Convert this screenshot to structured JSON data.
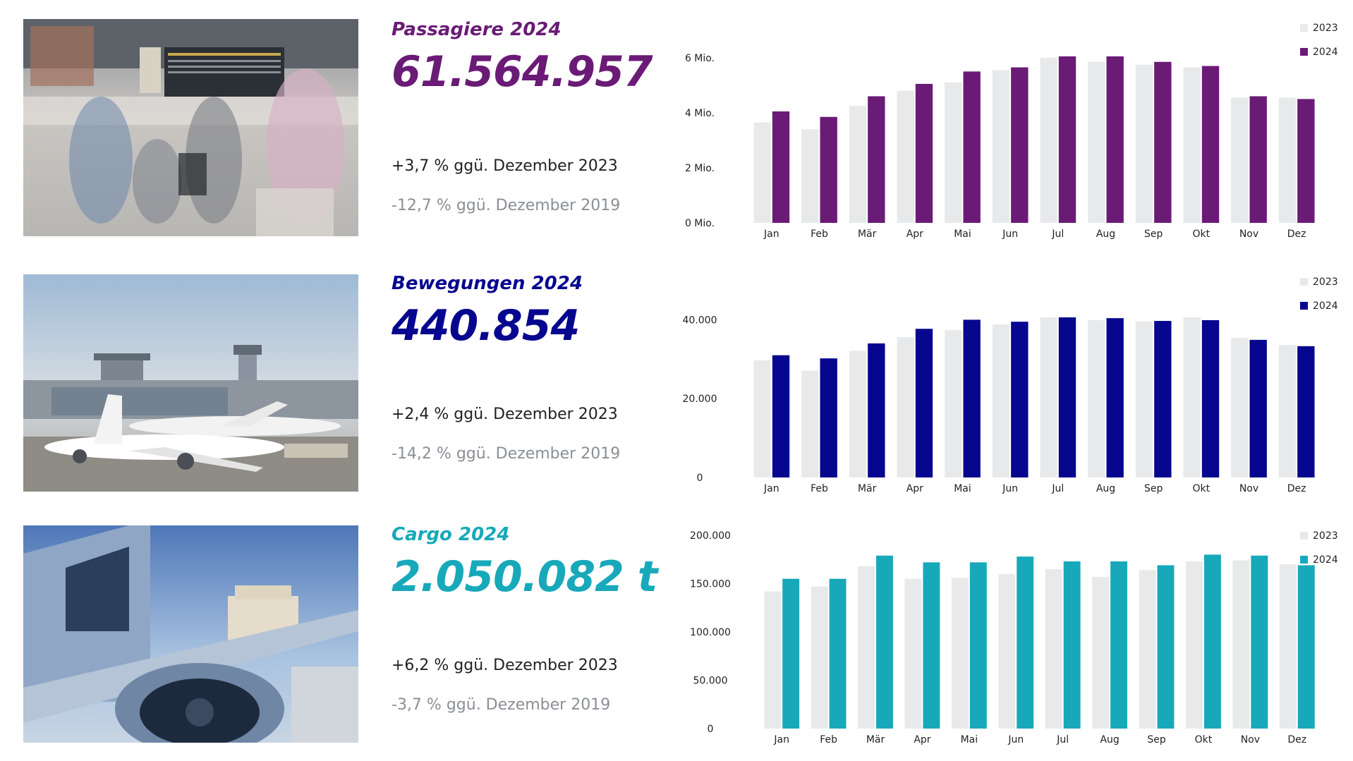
{
  "rows": [
    {
      "title": "Passagiere 2024",
      "value": "61.564.957",
      "change_prev_year": "+3,7 % ggü. Dezember 2023",
      "change_2019": "-12,7 % ggü. Dezember 2019",
      "color": "#6a1b76",
      "photo": "airport-terminal-photo"
    },
    {
      "title": "Bewegungen 2024",
      "value": "440.854",
      "change_prev_year": "+2,4 % ggü. Dezember 2023",
      "change_2019": "-14,2 % ggü. Dezember 2019",
      "color": "#07068f",
      "photo": "apron-aircraft-photo"
    },
    {
      "title": "Cargo 2024",
      "value": "2.050.082 t",
      "change_prev_year": "+6,2 % ggü. Dezember 2023",
      "change_2019": "-3,7 % ggü. Dezember 2019",
      "color": "#17a9ba",
      "photo": "cargo-aircraft-photo"
    }
  ],
  "chart_data": [
    {
      "type": "bar",
      "categories": [
        "Jan",
        "Feb",
        "Mär",
        "Apr",
        "Mai",
        "Jun",
        "Jul",
        "Aug",
        "Sep",
        "Okt",
        "Nov",
        "Dez"
      ],
      "series": [
        {
          "name": "2023",
          "color": "#e8e9eb",
          "values": [
            3.65,
            3.4,
            4.25,
            4.8,
            5.1,
            5.55,
            6.0,
            5.85,
            5.75,
            5.65,
            4.55,
            4.55
          ]
        },
        {
          "name": "2024",
          "color": "#6a1b76",
          "values": [
            4.05,
            3.85,
            4.6,
            5.05,
            5.5,
            5.65,
            6.05,
            6.05,
            5.85,
            5.7,
            4.6,
            4.5
          ]
        }
      ],
      "yticks": [
        "0 Mio.",
        "2 Mio.",
        "4 Mio.",
        "6 Mio."
      ],
      "ytick_values": [
        0,
        2,
        4,
        6
      ],
      "ylim": [
        0,
        6.15
      ],
      "legend": "top-right",
      "grid": false
    },
    {
      "type": "bar",
      "categories": [
        "Jan",
        "Feb",
        "Mär",
        "Apr",
        "Mai",
        "Jun",
        "Jul",
        "Aug",
        "Sep",
        "Okt",
        "Nov",
        "Dez"
      ],
      "series": [
        {
          "name": "2023",
          "color": "#e8e9eb",
          "values": [
            29700,
            27100,
            32100,
            35600,
            37400,
            38800,
            40600,
            39900,
            39600,
            40600,
            35400,
            33600
          ]
        },
        {
          "name": "2024",
          "color": "#07068f",
          "values": [
            31000,
            30200,
            34000,
            37700,
            40000,
            39500,
            40600,
            40400,
            39700,
            39900,
            34900,
            33300
          ]
        }
      ],
      "yticks": [
        "0",
        "20.000",
        "40.000"
      ],
      "ytick_values": [
        0,
        20000,
        40000
      ],
      "ylim": [
        0,
        40600
      ],
      "legend": "top-right",
      "grid": false
    },
    {
      "type": "bar",
      "categories": [
        "Jan",
        "Feb",
        "Mär",
        "Apr",
        "Mai",
        "Jun",
        "Jul",
        "Aug",
        "Sep",
        "Okt",
        "Nov",
        "Dez"
      ],
      "series": [
        {
          "name": "2023",
          "color": "#e8e9eb",
          "values": [
            142000,
            147000,
            168000,
            155000,
            156000,
            160000,
            165000,
            157000,
            164000,
            173000,
            174000,
            170000
          ]
        },
        {
          "name": "2024",
          "color": "#17a9ba",
          "values": [
            155000,
            155000,
            179000,
            172000,
            172000,
            178000,
            173000,
            173000,
            169000,
            180000,
            179000,
            169000
          ]
        }
      ],
      "yticks": [
        "0",
        "50.000",
        "100.000",
        "150.000",
        "200.000"
      ],
      "ytick_values": [
        0,
        50000,
        100000,
        150000,
        200000
      ],
      "ylim": [
        0,
        200000
      ],
      "legend": "top-right",
      "grid": false
    }
  ]
}
